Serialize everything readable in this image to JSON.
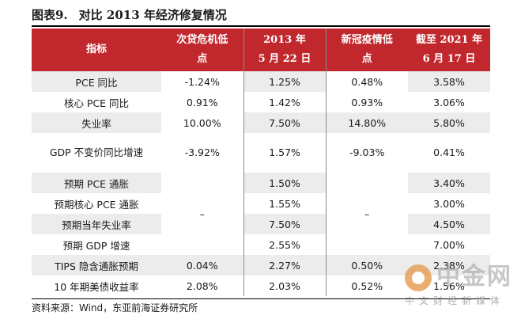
{
  "title": {
    "number": "图表9.",
    "text": "对比 2013 年经济修复情况"
  },
  "headers": [
    "指标",
    "次贷危机低点",
    "2013 年\n5 月 22 日",
    "新冠疫情低点",
    "截至 2021 年\n6 月 17 日"
  ],
  "rows": [
    {
      "label": "PCE 同比",
      "subprime_low": "-1.24%",
      "may_2013": "1.25%",
      "covid_low": "0.48%",
      "jun_2021": "3.58%"
    },
    {
      "label": "核心 PCE 同比",
      "subprime_low": "0.91%",
      "may_2013": "1.42%",
      "covid_low": "0.93%",
      "jun_2021": "3.06%"
    },
    {
      "label": "失业率",
      "subprime_low": "10.00%",
      "may_2013": "7.50%",
      "covid_low": "14.80%",
      "jun_2021": "5.80%"
    },
    {
      "label": "GDP 不变价同比增速",
      "subprime_low": "-3.92%",
      "may_2013": "1.57%",
      "covid_low": "-9.03%",
      "jun_2021": "0.41%"
    },
    {
      "label": "预期 PCE 通胀",
      "may_2013": "1.50%",
      "jun_2021": "3.40%"
    },
    {
      "label": "预期核心 PCE 通胀",
      "may_2013": "1.55%",
      "jun_2021": "3.00%"
    },
    {
      "label": "预期当年失业率",
      "may_2013": "7.50%",
      "jun_2021": "4.50%"
    },
    {
      "label": "预期 GDP 增速",
      "may_2013": "2.55%",
      "jun_2021": "7.00%"
    },
    {
      "label": "TIPS 隐含通胀预期",
      "subprime_low": "0.04%",
      "may_2013": "2.27%",
      "covid_low": "0.50%",
      "jun_2021": "2.38%"
    },
    {
      "label": "10 年期美债收益率",
      "subprime_low": "2.08%",
      "may_2013": "2.03%",
      "covid_low": "0.52%",
      "jun_2021": "1.56%"
    }
  ],
  "merged_dash": "–",
  "source": "资料来源：Wind，东亚前海证券研究所",
  "watermark": {
    "name": "中金网",
    "tagline": "中文财经新媒体"
  }
}
